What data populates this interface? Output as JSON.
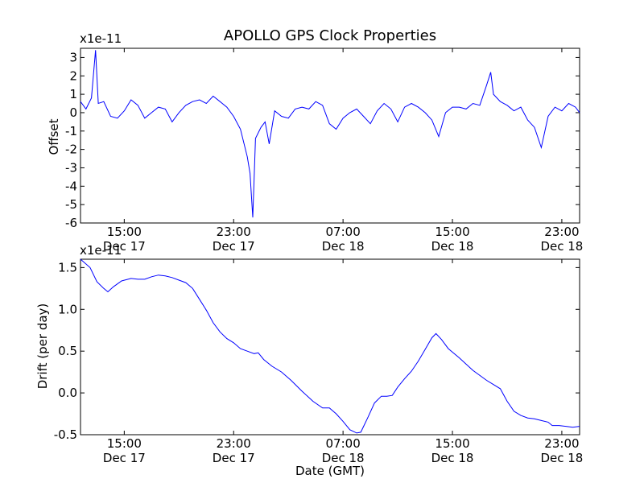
{
  "title": "APOLLO GPS Clock Properties",
  "line_color": "#0000ff",
  "chart_data": [
    {
      "type": "line",
      "title": "APOLLO GPS Clock Properties",
      "xlabel": "",
      "ylabel": "Offset",
      "offset_text": "x1e-11",
      "x_axis": "time (hours since Dec 17 00:00 GMT)",
      "xlim": [
        11.8,
        48.3
      ],
      "ylim": [
        -6,
        3.5
      ],
      "yticks": [
        3,
        2,
        1,
        0,
        -1,
        -2,
        -3,
        -4,
        -5,
        -6
      ],
      "ytick_labels": [
        "3",
        "2",
        "1",
        "0",
        "-1",
        "-2",
        "-3",
        "-4",
        "-5",
        "-6"
      ],
      "xticks": [
        {
          "x": 15,
          "time": "15:00",
          "date": "Dec 17"
        },
        {
          "x": 23,
          "time": "23:00",
          "date": "Dec 17"
        },
        {
          "x": 31,
          "time": "07:00",
          "date": "Dec 18"
        },
        {
          "x": 39,
          "time": "15:00",
          "date": "Dec 18"
        },
        {
          "x": 47,
          "time": "23:00",
          "date": "Dec 18"
        }
      ],
      "series": [
        {
          "values": [
            [
              11.8,
              0.6
            ],
            [
              12.2,
              0.2
            ],
            [
              12.6,
              0.8
            ],
            [
              12.9,
              3.4
            ],
            [
              13.1,
              0.5
            ],
            [
              13.5,
              0.6
            ],
            [
              14.0,
              -0.2
            ],
            [
              14.5,
              -0.3
            ],
            [
              15.0,
              0.1
            ],
            [
              15.5,
              0.7
            ],
            [
              16.0,
              0.4
            ],
            [
              16.5,
              -0.3
            ],
            [
              17.0,
              0.0
            ],
            [
              17.5,
              0.3
            ],
            [
              18.0,
              0.2
            ],
            [
              18.5,
              -0.5
            ],
            [
              19.0,
              0.0
            ],
            [
              19.5,
              0.4
            ],
            [
              20.0,
              0.6
            ],
            [
              20.5,
              0.7
            ],
            [
              21.0,
              0.5
            ],
            [
              21.5,
              0.9
            ],
            [
              22.0,
              0.6
            ],
            [
              22.5,
              0.3
            ],
            [
              23.0,
              -0.2
            ],
            [
              23.5,
              -0.9
            ],
            [
              24.0,
              -2.4
            ],
            [
              24.2,
              -3.3
            ],
            [
              24.4,
              -5.7
            ],
            [
              24.6,
              -1.4
            ],
            [
              25.0,
              -0.8
            ],
            [
              25.3,
              -0.5
            ],
            [
              25.6,
              -1.7
            ],
            [
              26.0,
              0.1
            ],
            [
              26.5,
              -0.2
            ],
            [
              27.0,
              -0.3
            ],
            [
              27.5,
              0.2
            ],
            [
              28.0,
              0.3
            ],
            [
              28.5,
              0.2
            ],
            [
              29.0,
              0.6
            ],
            [
              29.5,
              0.4
            ],
            [
              30.0,
              -0.6
            ],
            [
              30.5,
              -0.9
            ],
            [
              31.0,
              -0.3
            ],
            [
              31.5,
              0.0
            ],
            [
              32.0,
              0.2
            ],
            [
              32.5,
              -0.2
            ],
            [
              33.0,
              -0.6
            ],
            [
              33.5,
              0.1
            ],
            [
              34.0,
              0.5
            ],
            [
              34.5,
              0.2
            ],
            [
              35.0,
              -0.5
            ],
            [
              35.5,
              0.3
            ],
            [
              36.0,
              0.5
            ],
            [
              36.5,
              0.3
            ],
            [
              37.0,
              0.0
            ],
            [
              37.5,
              -0.4
            ],
            [
              38.0,
              -1.3
            ],
            [
              38.5,
              0.0
            ],
            [
              39.0,
              0.3
            ],
            [
              39.5,
              0.3
            ],
            [
              40.0,
              0.2
            ],
            [
              40.5,
              0.5
            ],
            [
              41.0,
              0.4
            ],
            [
              41.5,
              1.5
            ],
            [
              41.8,
              2.2
            ],
            [
              42.0,
              1.0
            ],
            [
              42.5,
              0.6
            ],
            [
              43.0,
              0.4
            ],
            [
              43.5,
              0.1
            ],
            [
              44.0,
              0.3
            ],
            [
              44.5,
              -0.4
            ],
            [
              45.0,
              -0.8
            ],
            [
              45.5,
              -1.9
            ],
            [
              46.0,
              -0.2
            ],
            [
              46.5,
              0.3
            ],
            [
              47.0,
              0.1
            ],
            [
              47.5,
              0.5
            ],
            [
              48.0,
              0.3
            ],
            [
              48.3,
              0.0
            ]
          ]
        }
      ]
    },
    {
      "type": "line",
      "xlabel": "Date (GMT)",
      "ylabel": "Drift (per day)",
      "offset_text": "x1e-11",
      "x_axis": "time (hours since Dec 17 00:00 GMT)",
      "xlim": [
        11.8,
        48.3
      ],
      "ylim": [
        -0.5,
        1.6
      ],
      "yticks": [
        1.5,
        1.0,
        0.5,
        0.0,
        -0.5
      ],
      "ytick_labels": [
        "1.5",
        "1.0",
        "0.5",
        "0.0",
        "-0.5"
      ],
      "xticks": [
        {
          "x": 15,
          "time": "15:00",
          "date": "Dec 17"
        },
        {
          "x": 23,
          "time": "23:00",
          "date": "Dec 17"
        },
        {
          "x": 31,
          "time": "07:00",
          "date": "Dec 18"
        },
        {
          "x": 39,
          "time": "15:00",
          "date": "Dec 18"
        },
        {
          "x": 47,
          "time": "23:00",
          "date": "Dec 18"
        }
      ],
      "series": [
        {
          "values": [
            [
              11.8,
              1.6
            ],
            [
              12.5,
              1.5
            ],
            [
              13.0,
              1.33
            ],
            [
              13.5,
              1.25
            ],
            [
              13.8,
              1.21
            ],
            [
              14.2,
              1.27
            ],
            [
              14.8,
              1.34
            ],
            [
              15.5,
              1.37
            ],
            [
              16.0,
              1.36
            ],
            [
              16.5,
              1.36
            ],
            [
              17.0,
              1.39
            ],
            [
              17.5,
              1.41
            ],
            [
              18.0,
              1.4
            ],
            [
              18.5,
              1.38
            ],
            [
              19.0,
              1.35
            ],
            [
              19.5,
              1.32
            ],
            [
              20.0,
              1.25
            ],
            [
              20.5,
              1.12
            ],
            [
              21.0,
              0.99
            ],
            [
              21.5,
              0.84
            ],
            [
              22.0,
              0.73
            ],
            [
              22.5,
              0.65
            ],
            [
              23.0,
              0.6
            ],
            [
              23.5,
              0.53
            ],
            [
              24.0,
              0.5
            ],
            [
              24.5,
              0.47
            ],
            [
              24.8,
              0.48
            ],
            [
              25.2,
              0.4
            ],
            [
              25.8,
              0.32
            ],
            [
              26.5,
              0.25
            ],
            [
              27.2,
              0.15
            ],
            [
              28.0,
              0.02
            ],
            [
              28.8,
              -0.1
            ],
            [
              29.5,
              -0.18
            ],
            [
              30.0,
              -0.18
            ],
            [
              30.5,
              -0.25
            ],
            [
              31.0,
              -0.34
            ],
            [
              31.5,
              -0.44
            ],
            [
              32.0,
              -0.48
            ],
            [
              32.3,
              -0.47
            ],
            [
              32.8,
              -0.3
            ],
            [
              33.3,
              -0.12
            ],
            [
              33.8,
              -0.04
            ],
            [
              34.2,
              -0.04
            ],
            [
              34.6,
              -0.03
            ],
            [
              35.0,
              0.07
            ],
            [
              35.5,
              0.17
            ],
            [
              36.0,
              0.26
            ],
            [
              36.5,
              0.38
            ],
            [
              37.0,
              0.52
            ],
            [
              37.5,
              0.66
            ],
            [
              37.8,
              0.71
            ],
            [
              38.2,
              0.64
            ],
            [
              38.7,
              0.53
            ],
            [
              39.5,
              0.42
            ],
            [
              40.5,
              0.27
            ],
            [
              41.5,
              0.15
            ],
            [
              42.0,
              0.1
            ],
            [
              42.5,
              0.05
            ],
            [
              43.0,
              -0.1
            ],
            [
              43.5,
              -0.22
            ],
            [
              44.0,
              -0.27
            ],
            [
              44.5,
              -0.3
            ],
            [
              45.0,
              -0.31
            ],
            [
              45.5,
              -0.33
            ],
            [
              46.0,
              -0.35
            ],
            [
              46.3,
              -0.39
            ],
            [
              46.8,
              -0.39
            ],
            [
              47.3,
              -0.4
            ],
            [
              47.8,
              -0.41
            ],
            [
              48.3,
              -0.4
            ]
          ]
        }
      ]
    }
  ]
}
